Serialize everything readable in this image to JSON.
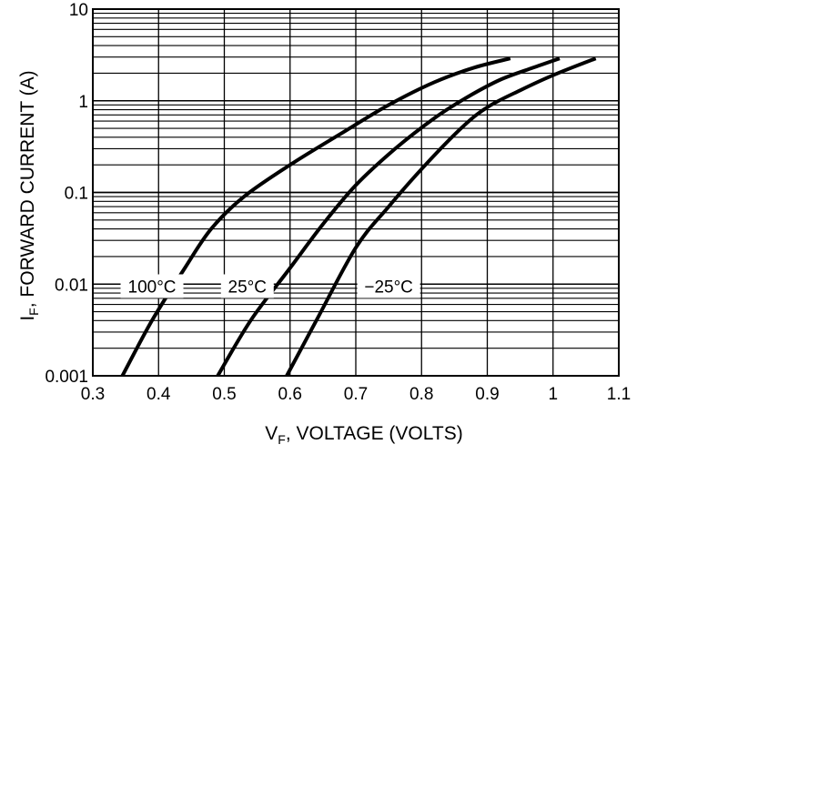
{
  "chart_data": {
    "type": "line",
    "xlabel": "V",
    "xlabel_sub": "F",
    "xlabel_rest": ", VOLTAGE (VOLTS)",
    "ylabel": "I",
    "ylabel_sub": "F",
    "ylabel_rest": ", FORWARD CURRENT (A)",
    "xlim": [
      0.3,
      1.1
    ],
    "ylim": [
      0.001,
      10
    ],
    "y_scale": "log",
    "grid": true,
    "x_ticks": [
      0.3,
      0.4,
      0.5,
      0.6,
      0.7,
      0.8,
      0.9,
      1.0,
      1.1
    ],
    "x_tick_labels": [
      "0.3",
      "0.4",
      "0.5",
      "0.6",
      "0.7",
      "0.8",
      "0.9",
      "1",
      "1.1"
    ],
    "y_ticks": [
      0.001,
      0.01,
      0.1,
      1,
      10
    ],
    "y_tick_labels": [
      "0.001",
      "0.01",
      "0.1",
      "1",
      "10"
    ],
    "series": [
      {
        "name": "100°C",
        "x": [
          0.345,
          0.39,
          0.44,
          0.48,
          0.53,
          0.6,
          0.68,
          0.75,
          0.82,
          0.88,
          0.935
        ],
        "y": [
          0.001,
          0.004,
          0.015,
          0.04,
          0.09,
          0.2,
          0.45,
          0.9,
          1.6,
          2.3,
          2.9
        ]
      },
      {
        "name": "25°C",
        "x": [
          0.49,
          0.54,
          0.6,
          0.65,
          0.7,
          0.76,
          0.82,
          0.87,
          0.92,
          0.97,
          1.01
        ],
        "y": [
          0.001,
          0.004,
          0.015,
          0.045,
          0.12,
          0.3,
          0.65,
          1.1,
          1.7,
          2.3,
          2.9
        ]
      },
      {
        "name": "−25°C",
        "x": [
          0.595,
          0.64,
          0.7,
          0.75,
          0.8,
          0.86,
          0.9,
          0.95,
          1.0,
          1.065
        ],
        "y": [
          0.001,
          0.004,
          0.025,
          0.07,
          0.18,
          0.5,
          0.85,
          1.3,
          1.9,
          2.9
        ]
      }
    ],
    "annotations": [
      {
        "series": "100°C",
        "text": "100°C",
        "x": 0.39,
        "y": 0.0095
      },
      {
        "series": "25°C",
        "text": "25°C",
        "x": 0.535,
        "y": 0.0095
      },
      {
        "series": "−25°C",
        "text": "−25°C",
        "x": 0.75,
        "y": 0.0095
      }
    ]
  }
}
